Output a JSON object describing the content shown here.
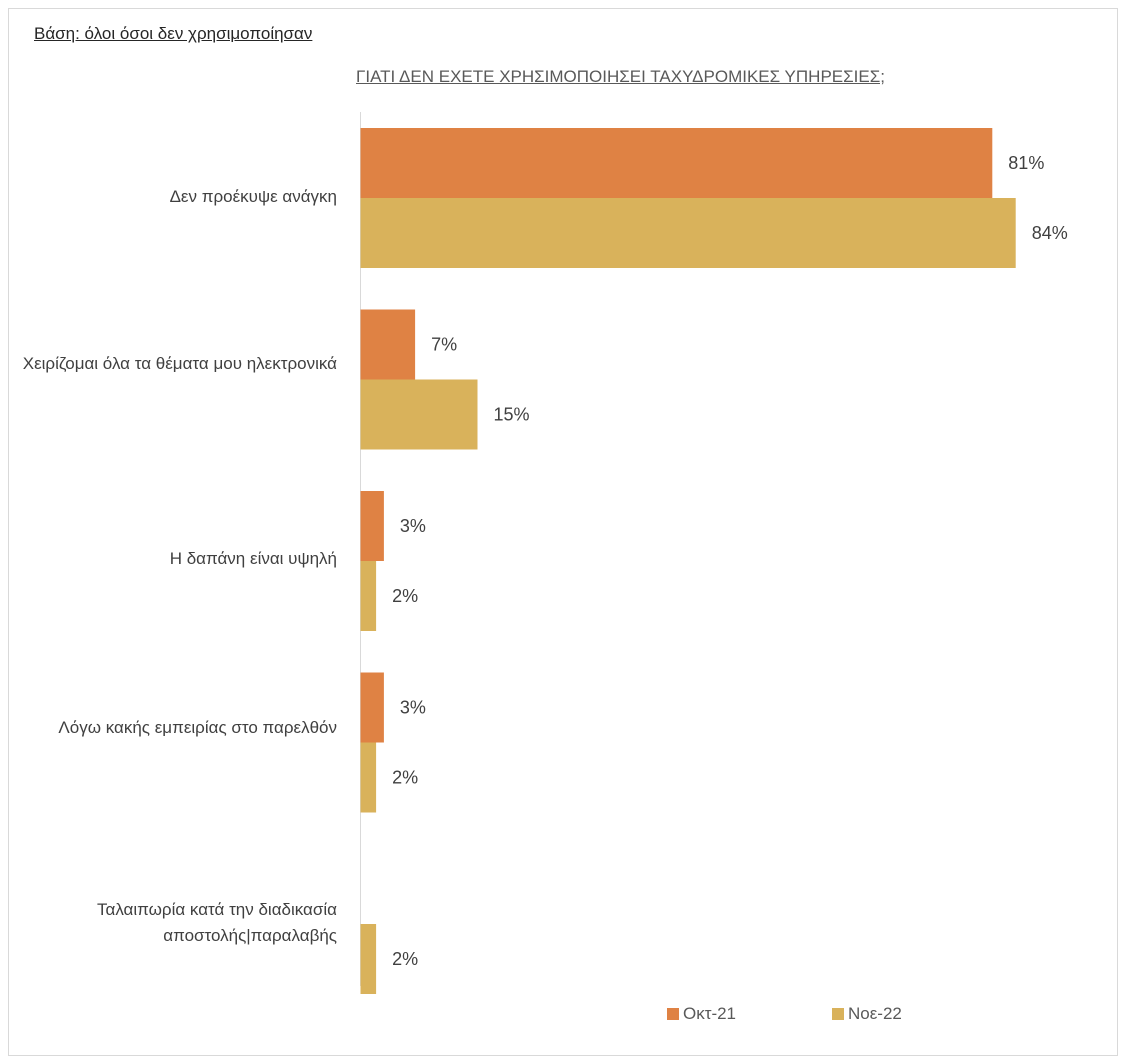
{
  "base_note": "Βάση: όλοι όσοι δεν χρησιμοποίησαν",
  "chart_data": {
    "type": "bar",
    "orientation": "horizontal",
    "title": "ΓΙΑΤΙ ΔΕΝ ΕΧΕΤΕ ΧΡΗΣΙΜΟΠΟΙΗΣΕΙ ΤΑΧΥΔΡΟΜΙΚΕΣ ΥΠΗΡΕΣΙΕΣ;",
    "categories": [
      "Δεν προέκυψε ανάγκη",
      "Χειρίζομαι όλα τα θέματα μου ηλεκτρονικά",
      "Η δαπάνη είναι υψηλή",
      "Λόγω κακής εμπειρίας στο παρελθόν",
      "Ταλαιπωρία κατά την διαδικασία αποστολής|παραλαβής"
    ],
    "series": [
      {
        "name": "Οκτ-21",
        "color": "#df8244",
        "values": [
          81,
          7,
          3,
          3,
          null
        ],
        "labels": [
          "81%",
          "7%",
          "3%",
          "3%",
          ""
        ]
      },
      {
        "name": "Νοε-22",
        "color": "#d9b25b",
        "values": [
          84,
          15,
          2,
          2,
          2
        ],
        "labels": [
          "84%",
          "15%",
          "2%",
          "2%",
          "2%"
        ]
      }
    ],
    "xlim": [
      0,
      100
    ],
    "xlabel": "",
    "ylabel": "",
    "grid": false,
    "legend": "bottom-right"
  }
}
